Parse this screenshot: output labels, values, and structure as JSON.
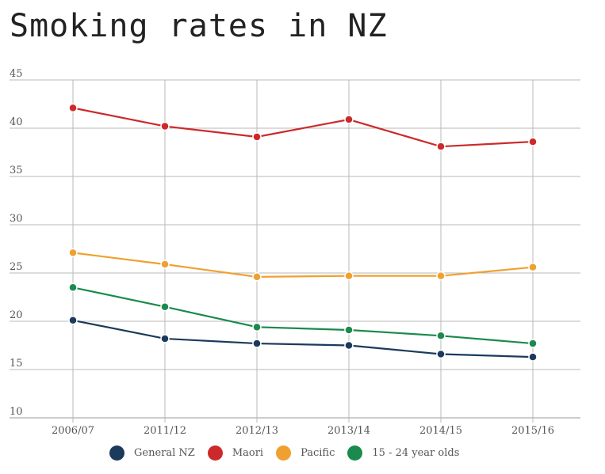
{
  "chart_data": {
    "type": "line",
    "title": "Smoking rates in NZ",
    "xlabel": "",
    "ylabel": "",
    "categories": [
      "2006/07",
      "2011/12",
      "2012/13",
      "2013/14",
      "2014/15",
      "2015/16"
    ],
    "ylim": [
      10,
      45
    ],
    "yticks": [
      10,
      15,
      20,
      25,
      30,
      35,
      40,
      45
    ],
    "grid": true,
    "legend_position": "bottom",
    "series": [
      {
        "name": "General NZ",
        "color": "#1b3a5c",
        "values": [
          20.1,
          18.2,
          17.7,
          17.5,
          16.6,
          16.3
        ]
      },
      {
        "name": "Maori",
        "color": "#cc2a2a",
        "values": [
          42.1,
          40.2,
          39.1,
          40.9,
          38.1,
          38.6
        ]
      },
      {
        "name": "Pacific",
        "color": "#f0a030",
        "values": [
          27.1,
          25.9,
          24.6,
          24.7,
          24.7,
          25.6
        ]
      },
      {
        "name": "15 - 24 year olds",
        "color": "#1a8a4e",
        "values": [
          23.5,
          21.5,
          19.4,
          19.1,
          18.5,
          17.7
        ]
      }
    ]
  }
}
